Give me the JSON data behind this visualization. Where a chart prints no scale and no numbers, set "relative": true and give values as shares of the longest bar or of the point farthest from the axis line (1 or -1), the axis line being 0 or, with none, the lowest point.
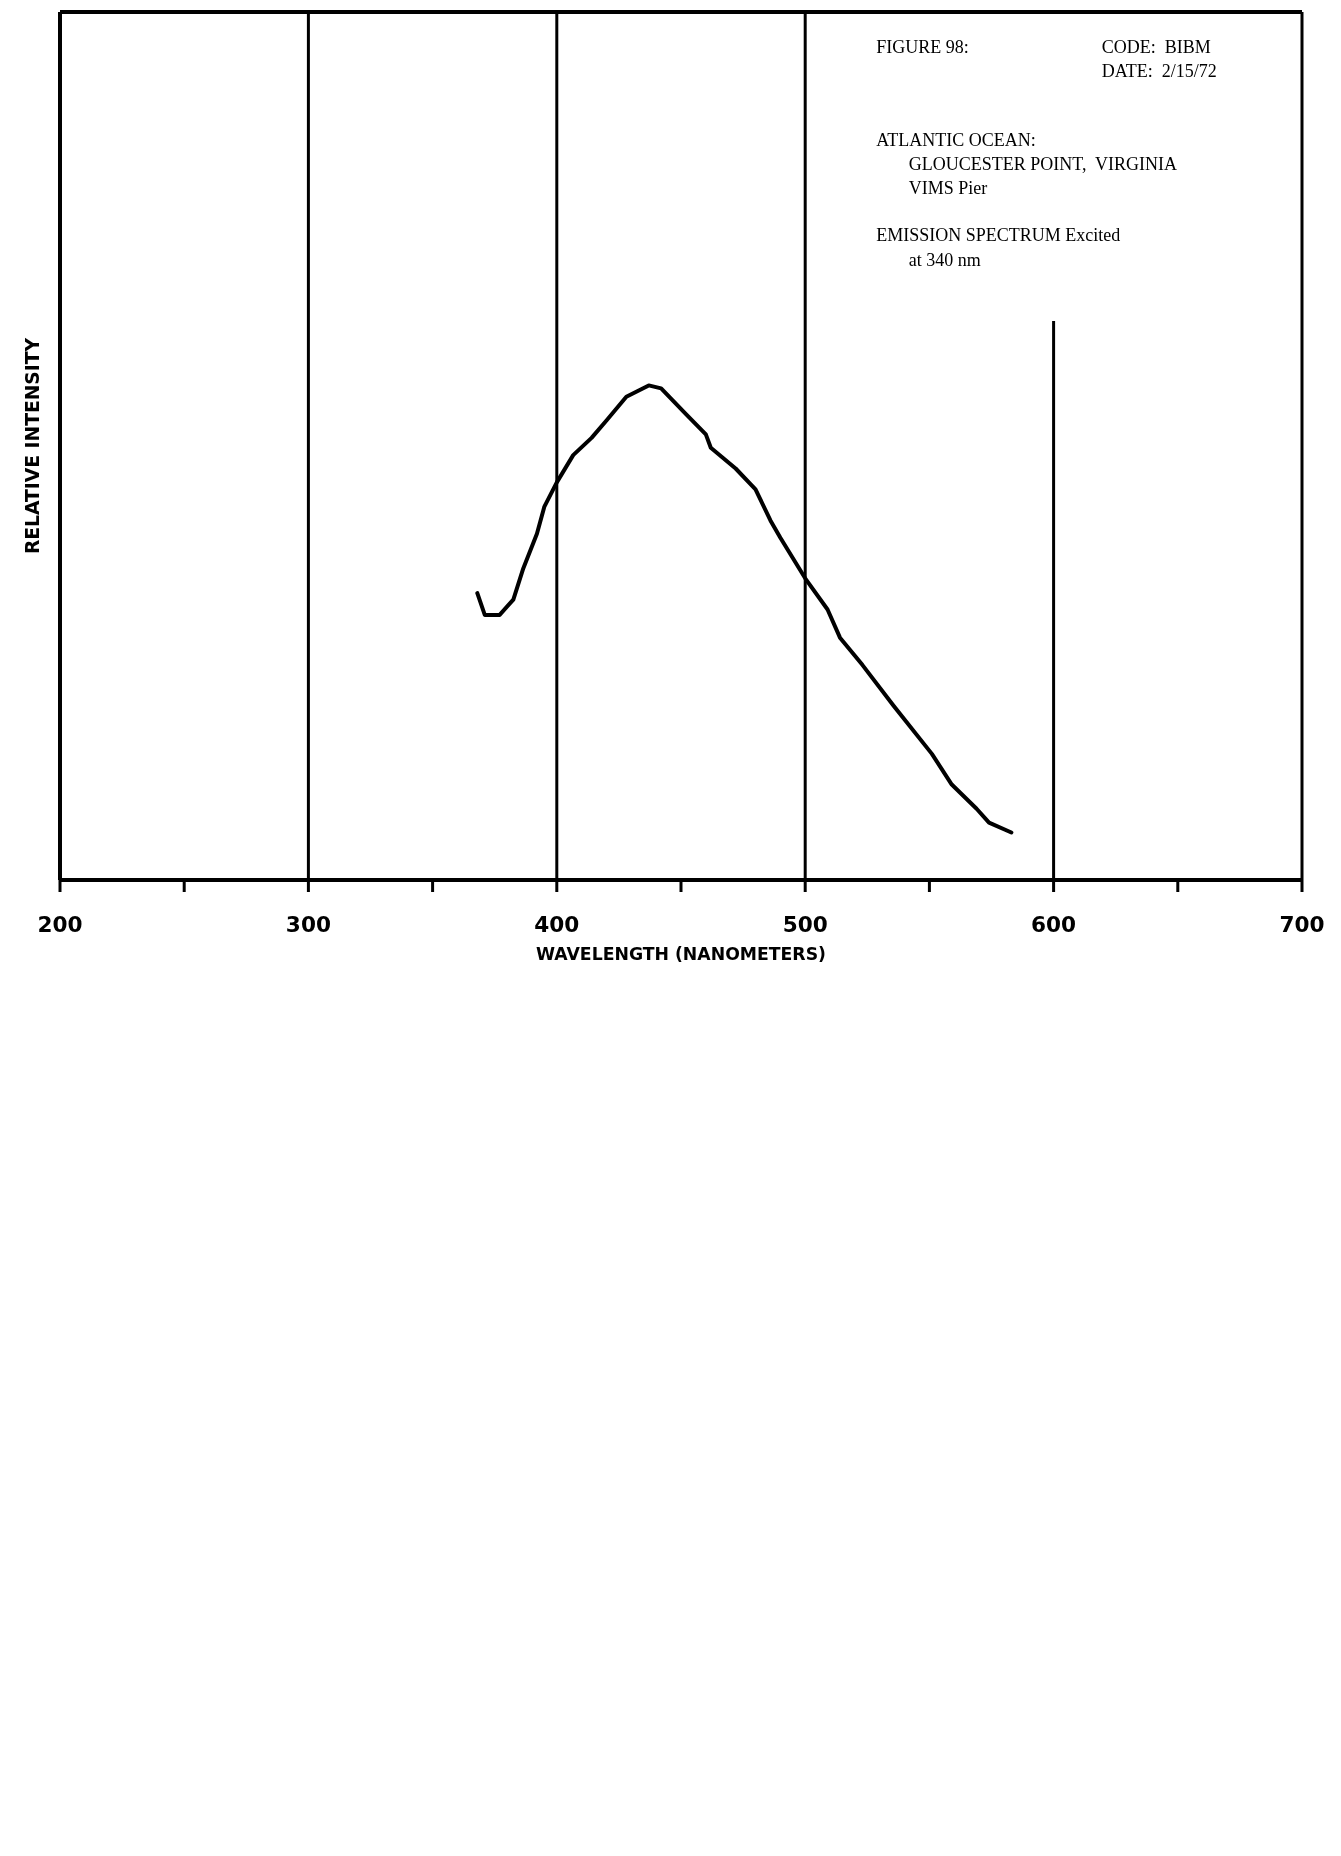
{
  "chart_data": {
    "type": "line",
    "title": "FIGURE 98:",
    "annotations": [
      "CODE:  BIBM",
      "DATE:  2/15/72",
      "ATLANTIC OCEAN:",
      "GLOUCESTER POINT,  VIRGINIA",
      "VIMS Pier",
      "EMISSION SPECTRUM Excited",
      "at 340 nm"
    ],
    "xlabel": "WAVELENGTH (NANOMETERS)",
    "ylabel": "RELATIVE INTENSITY",
    "relative": true,
    "x": [
      368,
      371,
      377,
      382.5,
      386.5,
      392,
      395,
      400,
      406.6,
      414,
      420,
      428,
      437,
      442,
      452,
      460,
      462,
      472,
      480,
      486,
      490,
      500,
      509,
      514,
      523,
      535.5,
      551,
      559,
      569,
      574,
      583
    ],
    "series": [
      {
        "color": "#000000",
        "values": [
          0.58,
          0.536,
          0.536,
          0.567,
          0.63,
          0.7,
          0.755,
          0.804,
          0.859,
          0.894,
          0.929,
          0.977,
          1.0,
          0.994,
          0.942,
          0.901,
          0.874,
          0.832,
          0.79,
          0.727,
          0.692,
          0.61,
          0.547,
          0.49,
          0.435,
          0.353,
          0.255,
          0.193,
          0.144,
          0.116,
          0.096
        ]
      }
    ],
    "xlim": [
      200,
      700
    ],
    "xticks": [
      200,
      {
        "value": 250,
        "label": null
      },
      300,
      {
        "value": 350,
        "label": null
      },
      400,
      {
        "value": 450,
        "label": null
      },
      500,
      {
        "value": 550,
        "label": null
      },
      600,
      {
        "value": 650,
        "label": null
      },
      700
    ],
    "grid": "x",
    "marker": "none",
    "line_style": "solid"
  }
}
